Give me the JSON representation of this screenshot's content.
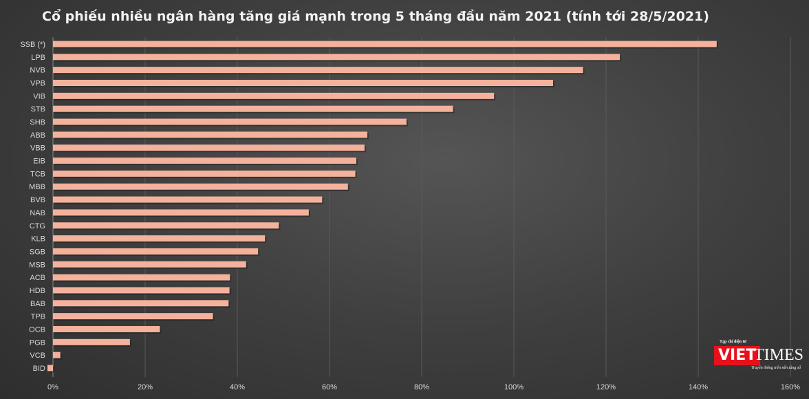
{
  "chart_data": {
    "type": "bar",
    "orientation": "horizontal",
    "title": "Cổ phiếu nhiều ngân hàng tăng giá mạnh trong 5 tháng đầu năm 2021 (tính tới 28/5/2021)",
    "categories": [
      "SSB (*)",
      "LPB",
      "NVB",
      "VPB",
      "VIB",
      "STB",
      "SHB",
      "ABB",
      "VBB",
      "EIB",
      "TCB",
      "MBB",
      "BVB",
      "NAB",
      "CTG",
      "KLB",
      "SGB",
      "MSB",
      "ACB",
      "HDB",
      "BAB",
      "TPB",
      "OCB",
      "PGB",
      "VCB",
      "BID"
    ],
    "values": [
      144,
      123,
      115,
      108.5,
      95.7,
      86.8,
      76.7,
      68.2,
      67.6,
      65.8,
      65.6,
      64,
      58.4,
      55.5,
      49,
      46,
      44.5,
      41.9,
      38.4,
      38.3,
      38.1,
      34.7,
      23.2,
      16.7,
      1.6,
      -1.2
    ],
    "unit": "%",
    "xlim": [
      0,
      160
    ],
    "xticks": [
      "0%",
      "20%",
      "40%",
      "60%",
      "80%",
      "100%",
      "120%",
      "140%",
      "160%"
    ],
    "grid": true,
    "bar_color": "#f4b29c"
  },
  "logo": {
    "tagline_top": "Tạp chí điện tử",
    "brand_left": "VIET",
    "brand_right": "TIMES",
    "tagline_bottom": "Truyền thông trên nền tảng số"
  }
}
